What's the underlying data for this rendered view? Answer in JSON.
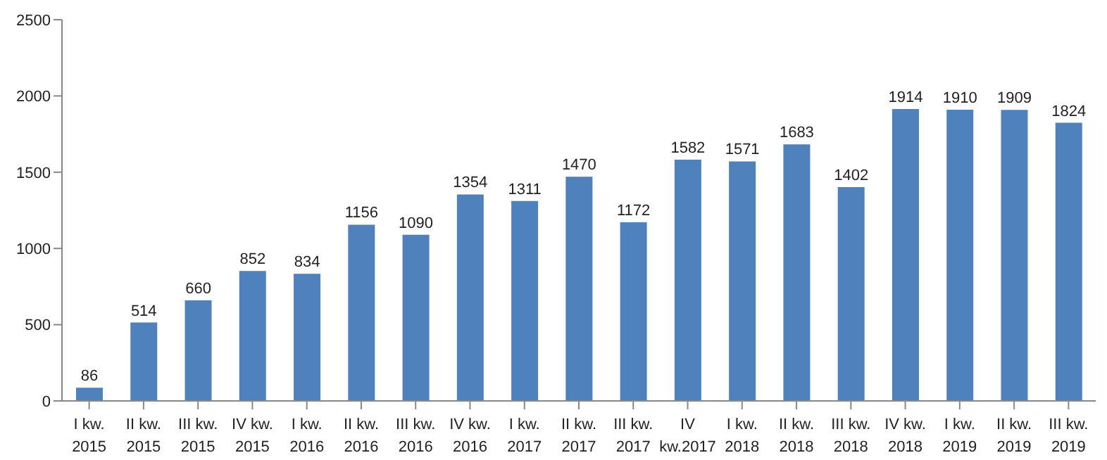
{
  "chart_data": {
    "type": "bar",
    "categories": [
      "I kw. 2015",
      "II kw. 2015",
      "III kw. 2015",
      "IV kw. 2015",
      "I kw. 2016",
      "II kw. 2016",
      "III kw. 2016",
      "IV kw. 2016",
      "I kw. 2017",
      "II kw. 2017",
      "III kw. 2017",
      "IV kw.2017",
      "I kw. 2018",
      "II kw. 2018",
      "III kw. 2018",
      "IV kw. 2018",
      "I kw. 2019",
      "II kw. 2019",
      "III kw. 2019"
    ],
    "values": [
      86,
      514,
      660,
      852,
      834,
      1156,
      1090,
      1354,
      1311,
      1470,
      1172,
      1582,
      1571,
      1683,
      1402,
      1914,
      1910,
      1909,
      1824
    ],
    "color": "#4f81bd",
    "ylim": [
      0,
      2500
    ],
    "yticks": [
      0,
      500,
      1000,
      1500,
      2000,
      2500
    ],
    "data_labels": true
  }
}
